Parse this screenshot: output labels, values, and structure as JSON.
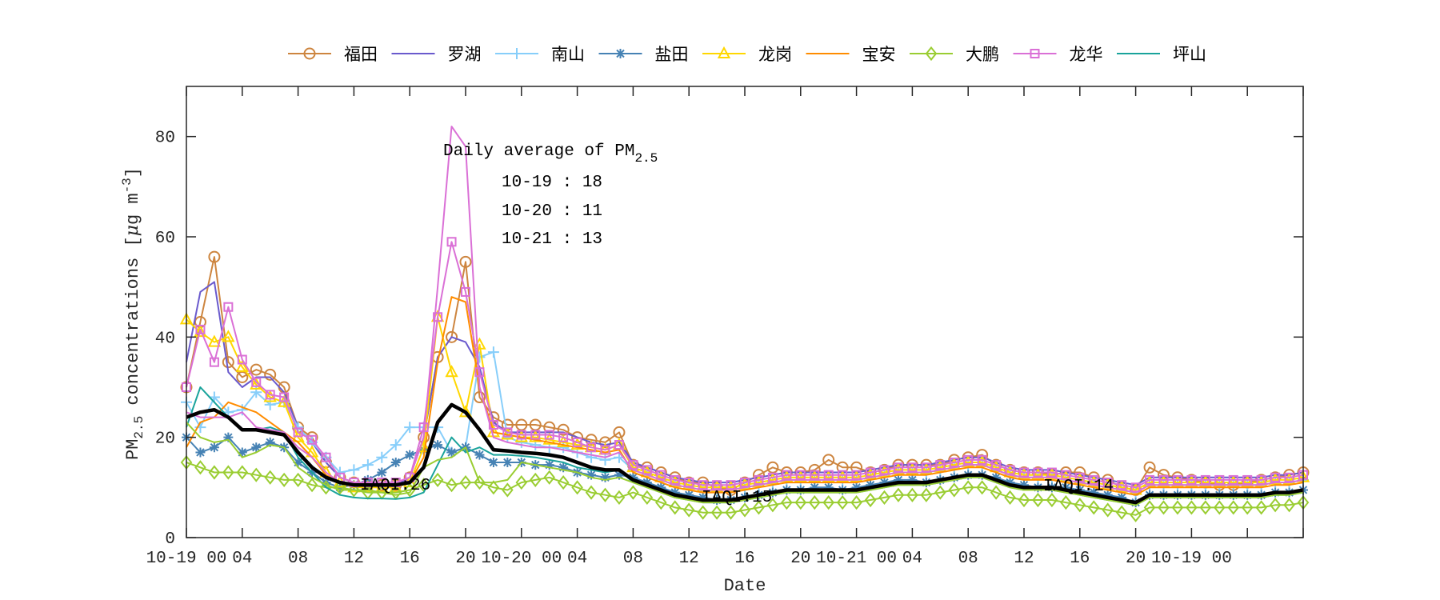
{
  "chart_data": {
    "type": "line",
    "xlabel": "Date",
    "ylabel": {
      "pm": "PM",
      "sub": "2.5",
      "mid": " concentrations [",
      "mu": "μ",
      "unit": "g m",
      "sup": "-3",
      "end": "]"
    },
    "ylim": [
      0,
      90
    ],
    "yticks": [
      "0",
      "20",
      "40",
      "60",
      "80"
    ],
    "xticks": [
      "10-19 00",
      "04",
      "08",
      "12",
      "16",
      "20",
      "10-20 00",
      "04",
      "08",
      "12",
      "16",
      "20",
      "10-21 00",
      "04",
      "08",
      "12",
      "16",
      "20",
      "10-19 00",
      "",
      ""
    ],
    "grid": false,
    "legend_position": "top",
    "x": [
      "10-19 00",
      "10-19 01",
      "10-19 02",
      "10-19 03",
      "10-19 04",
      "10-19 05",
      "10-19 06",
      "10-19 07",
      "10-19 08",
      "10-19 09",
      "10-19 10",
      "10-19 11",
      "10-19 12",
      "10-19 13",
      "10-19 14",
      "10-19 15",
      "10-19 16",
      "10-19 17",
      "10-19 18",
      "10-19 19",
      "10-19 20",
      "10-19 21",
      "10-19 22",
      "10-19 23",
      "10-20 00",
      "10-20 01",
      "10-20 02",
      "10-20 03",
      "10-20 04",
      "10-20 05",
      "10-20 06",
      "10-20 07",
      "10-20 08",
      "10-20 09",
      "10-20 10",
      "10-20 11",
      "10-20 12",
      "10-20 13",
      "10-20 14",
      "10-20 15",
      "10-20 16",
      "10-20 17",
      "10-20 18",
      "10-20 19",
      "10-20 20",
      "10-20 21",
      "10-20 22",
      "10-20 23",
      "10-21 00",
      "10-21 01",
      "10-21 02",
      "10-21 03",
      "10-21 04",
      "10-21 05",
      "10-21 06",
      "10-21 07",
      "10-21 08",
      "10-21 09",
      "10-21 10",
      "10-21 11",
      "10-21 12",
      "10-21 13",
      "10-21 14",
      "10-21 15",
      "10-21 16",
      "10-21 17",
      "10-21 18",
      "10-21 19",
      "10-21 20",
      "10-21 21",
      "10-21 22",
      "10-21 23",
      "10-22 00",
      "10-22 01",
      "10-22 02",
      "10-22 03",
      "10-22 04",
      "10-22 05",
      "10-22 06",
      "10-22 07",
      "10-22 08"
    ],
    "series": [
      {
        "name": "福田",
        "color": "#CD853F",
        "marker": "circle",
        "values": [
          30,
          43,
          56,
          35,
          32,
          33.5,
          32.5,
          30,
          22,
          20,
          15,
          12,
          11,
          10.5,
          10.5,
          10.5,
          12,
          20,
          36,
          40,
          55,
          28,
          24,
          22.5,
          22.5,
          22.5,
          22,
          21.5,
          20,
          19.5,
          19,
          21,
          14.5,
          14,
          13,
          12,
          11,
          11,
          10,
          9.5,
          11,
          12.5,
          14,
          13,
          13,
          13.5,
          15.5,
          14,
          14,
          13,
          13.5,
          14.5,
          14.5,
          14.5,
          14.5,
          15.5,
          16,
          16.5,
          14.5,
          13.5,
          13,
          13,
          12.5,
          13,
          13,
          12,
          11.5,
          10,
          9.5,
          14,
          12.5,
          12,
          11.5,
          11,
          10.5,
          10.5,
          11,
          11.5,
          12,
          12.5,
          13
        ]
      },
      {
        "name": "罗湖",
        "color": "#6A5ACD",
        "marker": "none",
        "values": [
          35,
          49,
          51,
          33,
          30,
          32,
          32,
          29,
          22,
          19,
          15,
          12,
          11,
          10.5,
          10.5,
          10.5,
          12,
          20,
          36,
          40,
          39,
          34,
          23,
          21,
          21,
          21,
          21,
          21,
          20,
          19,
          18.5,
          19,
          15,
          14,
          13,
          12,
          11.5,
          11,
          11,
          11,
          11.5,
          12,
          12.5,
          13,
          13,
          13,
          13,
          13,
          13,
          13.5,
          14,
          14.5,
          14.5,
          14.5,
          15,
          15.5,
          16,
          16,
          15,
          14,
          13.5,
          13.5,
          13.5,
          13,
          12.5,
          12,
          11.5,
          11,
          10.5,
          12,
          12,
          12,
          12,
          12,
          12,
          12,
          12,
          12,
          12.5,
          12.5,
          13
        ]
      },
      {
        "name": "南山",
        "color": "#87CEFA",
        "marker": "plus",
        "values": [
          27,
          22,
          28,
          25,
          25.5,
          29,
          26.5,
          27,
          22,
          19,
          16,
          13,
          13.5,
          14.5,
          16,
          18.5,
          22,
          22,
          22,
          17,
          18,
          36,
          37,
          20,
          19,
          18.5,
          18,
          18,
          17,
          16,
          15.5,
          16,
          13.5,
          12.5,
          11.5,
          10.5,
          10,
          9.5,
          9.5,
          9.5,
          10,
          10.5,
          11,
          11.5,
          11.5,
          11.5,
          11.5,
          11.5,
          11.5,
          12,
          12.5,
          13,
          13,
          13,
          13.5,
          14,
          14.5,
          14.5,
          13.5,
          12.5,
          12,
          12,
          12,
          11.5,
          11,
          10.5,
          10,
          9.5,
          9,
          10.5,
          10.5,
          10.5,
          10.5,
          10.5,
          10.5,
          10.5,
          10.5,
          10.5,
          11,
          11,
          11.5
        ]
      },
      {
        "name": "盐田",
        "color": "#4682B4",
        "marker": "star",
        "values": [
          20,
          17,
          18,
          20,
          17,
          18,
          19,
          18,
          15,
          13,
          11,
          10,
          10.5,
          11.5,
          13,
          15,
          16.5,
          17.5,
          18.5,
          17,
          18,
          16.5,
          15,
          15,
          15,
          14.5,
          14.5,
          14,
          13,
          12.5,
          12,
          12.5,
          12,
          11,
          10,
          9,
          8.5,
          8,
          7.5,
          7.5,
          8,
          8.5,
          9,
          9.5,
          9.5,
          10,
          10,
          9.5,
          10,
          10.5,
          11,
          11.5,
          11.5,
          11,
          11.5,
          12,
          12.5,
          12.5,
          12,
          11,
          10.5,
          10,
          10,
          10,
          9.5,
          9,
          8.5,
          8,
          7,
          8.5,
          8.5,
          8.5,
          8.5,
          8.5,
          8.5,
          8.5,
          8.5,
          8.5,
          9,
          9,
          9.5
        ]
      },
      {
        "name": "龙岗",
        "color": "#FFD700",
        "marker": "triangle",
        "values": [
          43.5,
          41,
          39,
          40,
          34,
          30.5,
          28,
          27,
          20,
          17,
          13,
          11,
          10,
          10,
          10,
          10,
          11,
          18,
          44,
          33,
          25,
          38.5,
          21,
          20.5,
          20,
          20,
          19.5,
          19,
          18.5,
          18,
          17.5,
          18.5,
          14,
          13,
          12,
          11,
          10.5,
          10,
          10,
          10,
          10.5,
          11,
          11.5,
          12,
          12,
          12,
          12,
          12,
          12,
          12.5,
          13,
          13.5,
          13.5,
          13.5,
          14,
          14.5,
          15,
          15,
          14,
          13,
          12.5,
          12.5,
          12.5,
          12,
          11.5,
          11,
          10.5,
          10,
          9.5,
          11,
          11,
          11,
          11,
          11,
          11,
          11,
          11,
          11,
          11.5,
          11.5,
          12
        ]
      },
      {
        "name": "宝安",
        "color": "#FF8C00",
        "marker": "none",
        "values": [
          18,
          23,
          24,
          27,
          26,
          25,
          23,
          21,
          19,
          16,
          12.5,
          11,
          10.5,
          10.5,
          10.5,
          10.5,
          11,
          16,
          35,
          48,
          47,
          30,
          21,
          20.5,
          20,
          19.5,
          19,
          18.5,
          18,
          17.5,
          17,
          17.5,
          13,
          12,
          11,
          10,
          9.5,
          9,
          9,
          9,
          9.5,
          10,
          10.5,
          11,
          11,
          11,
          11,
          11,
          11,
          11.5,
          12,
          12.5,
          12.5,
          12.5,
          13,
          13.5,
          14,
          14,
          13,
          12,
          11.5,
          11.5,
          11.5,
          11,
          10.5,
          10,
          9.5,
          9,
          8.5,
          10,
          10,
          10,
          10,
          10,
          10,
          10,
          10,
          10,
          10.5,
          10.5,
          11
        ]
      },
      {
        "name": "大鹏",
        "color": "#9ACD32",
        "marker": "diamond",
        "values": [
          15,
          14,
          13,
          13,
          13,
          12.5,
          12,
          11.5,
          11.5,
          10.5,
          10,
          10,
          9.5,
          9,
          9,
          9,
          9.5,
          10.5,
          11.5,
          10.5,
          11,
          11,
          10,
          9.5,
          11,
          11.5,
          12,
          11,
          10,
          9,
          8.5,
          8,
          9,
          8,
          7,
          6,
          5.5,
          5,
          5,
          5,
          5.5,
          6,
          6.5,
          7,
          7,
          7,
          7,
          7,
          7,
          7.5,
          8,
          8.5,
          8.5,
          8.5,
          9,
          9.5,
          10,
          10,
          9,
          8,
          7.5,
          7.5,
          7.5,
          7,
          6.5,
          6,
          5.5,
          5,
          4.5,
          6,
          6,
          6,
          6,
          6,
          6,
          6,
          6,
          6,
          6.5,
          6.5,
          7
        ]
      },
      {
        "name": "龙华",
        "color": "#DA70D6",
        "marker": "square",
        "values": [
          30,
          41.5,
          35,
          46,
          35.5,
          31,
          28.5,
          28,
          21,
          19.5,
          16,
          12,
          11,
          11,
          11,
          11,
          12,
          22,
          44,
          59,
          49,
          33,
          22.5,
          21,
          20.5,
          20.5,
          20.5,
          20,
          19,
          18,
          17.5,
          18.5,
          14.5,
          13.5,
          12.5,
          11.5,
          11,
          10.5,
          10.5,
          10.5,
          11,
          11.5,
          12,
          12.5,
          12.5,
          12.5,
          12.5,
          12.5,
          12.5,
          13,
          13.5,
          14,
          14,
          14,
          14.5,
          15,
          15.5,
          15.5,
          14.5,
          13.5,
          13,
          13,
          13,
          12.5,
          12,
          11.5,
          11,
          10.5,
          10,
          11.5,
          11.5,
          11.5,
          11.5,
          11.5,
          11.5,
          11.5,
          11.5,
          11.5,
          12,
          12,
          12.5
        ]
      },
      {
        "name": "坪山",
        "color": "#1AA39B",
        "marker": "none",
        "values": [
          22,
          30,
          27,
          24,
          21.5,
          21.5,
          22,
          21,
          16,
          13,
          10,
          8.5,
          8,
          7.8,
          7.8,
          7.7,
          8,
          9,
          14.5,
          20,
          17,
          18,
          16.5,
          16.5,
          16.3,
          16,
          15.5,
          15,
          14,
          13.5,
          13,
          13.5,
          11,
          10,
          9,
          8,
          7.5,
          7,
          7,
          7,
          7.5,
          8,
          8.5,
          9,
          9,
          9,
          9,
          9,
          9,
          9.5,
          10,
          10.5,
          10.5,
          10.5,
          11,
          11.5,
          12,
          12,
          11,
          10,
          9.5,
          9.5,
          9.5,
          9,
          8.5,
          8,
          7.5,
          7,
          6.5,
          8,
          8,
          8,
          8,
          8,
          8,
          8,
          8,
          8,
          8.5,
          8.5,
          9
        ]
      },
      {
        "color": "#DA70D6",
        "marker": "none",
        "values": [
          25,
          24,
          24,
          24,
          25,
          22,
          21.5,
          21,
          18,
          16,
          13,
          11,
          11,
          11,
          11,
          11,
          12,
          20,
          50,
          82,
          78,
          30,
          20,
          19,
          18.5,
          18,
          18,
          17.5,
          17,
          16.5,
          16,
          17,
          13.5,
          12.5,
          11.5,
          10.5,
          10,
          9.5,
          9.5,
          9.5,
          10,
          10.5,
          11,
          11.5,
          11.5,
          11.5,
          11.5,
          11.5,
          11.5,
          12,
          12.5,
          13,
          13,
          13,
          13.5,
          14,
          14.5,
          14.5,
          13.5,
          12.5,
          12,
          12,
          12,
          11.5,
          11,
          10.5,
          10,
          9.5,
          9,
          10.5,
          10.5,
          10.5,
          10.5,
          10.5,
          10.5,
          10.5,
          10.5,
          10.5,
          11,
          11,
          11.5
        ]
      },
      {
        "color": "#9ACD32",
        "marker": "none",
        "values": [
          23,
          20,
          19,
          19.5,
          16,
          17,
          18.5,
          18,
          14,
          12,
          10.5,
          9.5,
          9.5,
          9.5,
          9,
          8.5,
          9,
          14,
          15.5,
          16,
          18,
          11,
          11,
          11.5,
          15,
          14.5,
          14,
          13.5,
          13,
          12,
          11.5,
          12,
          11,
          10,
          9,
          8,
          7.5,
          7,
          7,
          7,
          7.5,
          8,
          8.5,
          9,
          9,
          9,
          9,
          9,
          9,
          9.5,
          10,
          10.5,
          10.5,
          10.5,
          11,
          11.5,
          12,
          12,
          11,
          10,
          9.5,
          9.5,
          9.5,
          9,
          8.5,
          8,
          7.5,
          7,
          6.5,
          8,
          8,
          8,
          8,
          8,
          8,
          8,
          8,
          8,
          8.5,
          8.5,
          9
        ]
      },
      {
        "color": "#000000",
        "marker": "none",
        "values": [
          24,
          25,
          25.5,
          24,
          21.5,
          21.5,
          21,
          20.5,
          17,
          14,
          12,
          11,
          10.5,
          10.5,
          10.5,
          10.5,
          11,
          14,
          23,
          26.5,
          25,
          21.5,
          17.5,
          17.3,
          17,
          16.8,
          16.5,
          16,
          15,
          14,
          13.5,
          13.5,
          11.5,
          10.5,
          9.5,
          8.5,
          8,
          7.5,
          7.5,
          7.5,
          8,
          8.5,
          9,
          9.5,
          9.5,
          9.5,
          9.5,
          9.5,
          9.5,
          10,
          10.5,
          11,
          11,
          11,
          11.5,
          12,
          12.5,
          12.5,
          11.5,
          10.5,
          10,
          10,
          10,
          9.5,
          9,
          8.5,
          8,
          7.5,
          7,
          8.5,
          8.5,
          8.5,
          8.5,
          8.5,
          8.5,
          8.5,
          8.5,
          8.5,
          9,
          9,
          9.5
        ]
      }
    ],
    "annotations": {
      "daily_title": "Daily average of PM",
      "daily_title_sub": "2.5",
      "daily": [
        "10-19 : 18",
        "10-20 : 11",
        "10-21 : 13"
      ],
      "iaqi": [
        "IAQI:26",
        "IAQI:15",
        "IAQI:14"
      ]
    }
  }
}
